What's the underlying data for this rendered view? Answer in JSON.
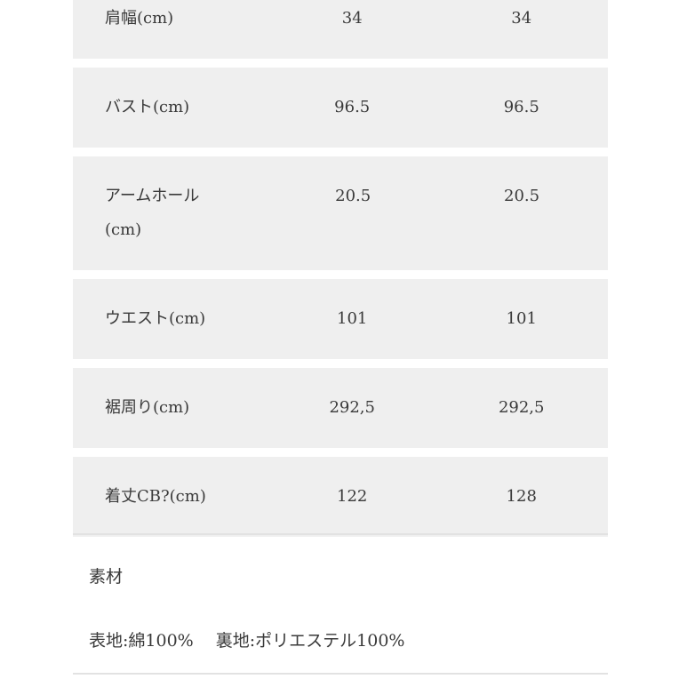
{
  "size_table": {
    "rows": [
      {
        "label": "肩幅(cm)",
        "values": [
          "34",
          "34"
        ]
      },
      {
        "label": "バスト(cm)",
        "values": [
          "96.5",
          "96.5"
        ]
      },
      {
        "label": "アームホール(cm)",
        "values": [
          "20.5",
          "20.5"
        ]
      },
      {
        "label": "ウエスト(cm)",
        "values": [
          "101",
          "101"
        ]
      },
      {
        "label": "裾周り(cm)",
        "values": [
          "292,5",
          "292,5"
        ]
      },
      {
        "label": "着丈CB?(cm)",
        "values": [
          "122",
          "128"
        ]
      }
    ]
  },
  "material": {
    "title": "素材",
    "text": "表地:綿100%　 裏地:ポリエステル100%"
  }
}
